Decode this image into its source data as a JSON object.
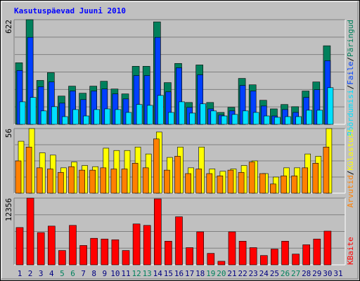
{
  "title": "Kasutuspäevad Juuni 2010",
  "chart_data": [
    {
      "type": "bar",
      "ylim": [
        0,
        622
      ],
      "yticks": [
        622
      ],
      "legend_separator": "/",
      "series": [
        {
          "name": "Päringud",
          "color": "#00805c",
          "values": [
            366,
            622,
            261,
            307,
            168,
            227,
            185,
            227,
            256,
            210,
            181,
            345,
            345,
            609,
            248,
            362,
            130,
            353,
            130,
            71,
            101,
            273,
            235,
            143,
            92,
            118,
            105,
            198,
            252,
            467,
            null
          ]
        },
        {
          "name": "Faile",
          "color": "#0040ff",
          "values": [
            320,
            517,
            223,
            252,
            126,
            198,
            147,
            198,
            210,
            181,
            151,
            290,
            290,
            517,
            193,
            336,
            101,
            294,
            92,
            55,
            80,
            231,
            198,
            109,
            50,
            88,
            71,
            160,
            206,
            378,
            null
          ]
        },
        {
          "name": "Pöördumisi",
          "color": "#00e0ff",
          "values": [
            134,
            160,
            80,
            105,
            46,
            88,
            50,
            88,
            92,
            88,
            71,
            118,
            113,
            172,
            71,
            134,
            67,
            122,
            80,
            50,
            59,
            80,
            71,
            50,
            42,
            46,
            46,
            84,
            84,
            218,
            null
          ]
        }
      ]
    },
    {
      "type": "bar",
      "ylim": [
        0,
        56
      ],
      "yticks": [
        56
      ],
      "legend_separator": "/",
      "series": [
        {
          "name": "Külastusi",
          "color": "#ffff00",
          "values": [
            45,
            56,
            35,
            33,
            22,
            27,
            24,
            23,
            39,
            37,
            37,
            40,
            34,
            53,
            31,
            40,
            22,
            40,
            21,
            19,
            21,
            24,
            28,
            17,
            14,
            22,
            22,
            34,
            32,
            56,
            null
          ]
        },
        {
          "name": "Arvutid",
          "color": "#ff8000",
          "values": [
            28,
            40,
            22,
            21,
            18,
            23,
            20,
            20,
            22,
            21,
            21,
            26,
            22,
            47,
            20,
            32,
            17,
            21,
            17,
            15,
            20,
            18,
            27,
            17,
            8,
            15,
            15,
            22,
            26,
            40,
            null
          ]
        }
      ]
    },
    {
      "type": "bar",
      "ylim": [
        0,
        12356
      ],
      "yticks": [
        12356
      ],
      "legend_separator": "/",
      "categories": [
        "1",
        "2",
        "3",
        "4",
        "5",
        "6",
        "7",
        "8",
        "9",
        "10",
        "11",
        "12",
        "13",
        "14",
        "15",
        "16",
        "17",
        "18",
        "19",
        "20",
        "21",
        "22",
        "23",
        "24",
        "25",
        "26",
        "27",
        "28",
        "29",
        "30",
        "31"
      ],
      "category_label_colors": [
        "#000080",
        "#000080",
        "#000080",
        "#000080",
        "#00805c",
        "#00805c",
        "#000080",
        "#000080",
        "#000080",
        "#000080",
        "#000080",
        "#00805c",
        "#00805c",
        "#000080",
        "#000080",
        "#000080",
        "#000080",
        "#000080",
        "#00805c",
        "#00805c",
        "#000080",
        "#000080",
        "#000080",
        "#000080",
        "#000080",
        "#00805c",
        "#00805c",
        "#000080",
        "#000080",
        "#000080",
        "#000080"
      ],
      "series": [
        {
          "name": "KBaite",
          "color": "#ff0000",
          "values": [
            6909,
            12356,
            5979,
            7174,
            2657,
            7307,
            3587,
            4916,
            4783,
            4650,
            2657,
            7573,
            7307,
            12223,
            4384,
            8902,
            3189,
            6112,
            2126,
            664,
            6112,
            4384,
            3189,
            1727,
            2923,
            4384,
            1993,
            3720,
            4783,
            6245,
            null
          ]
        }
      ]
    }
  ]
}
